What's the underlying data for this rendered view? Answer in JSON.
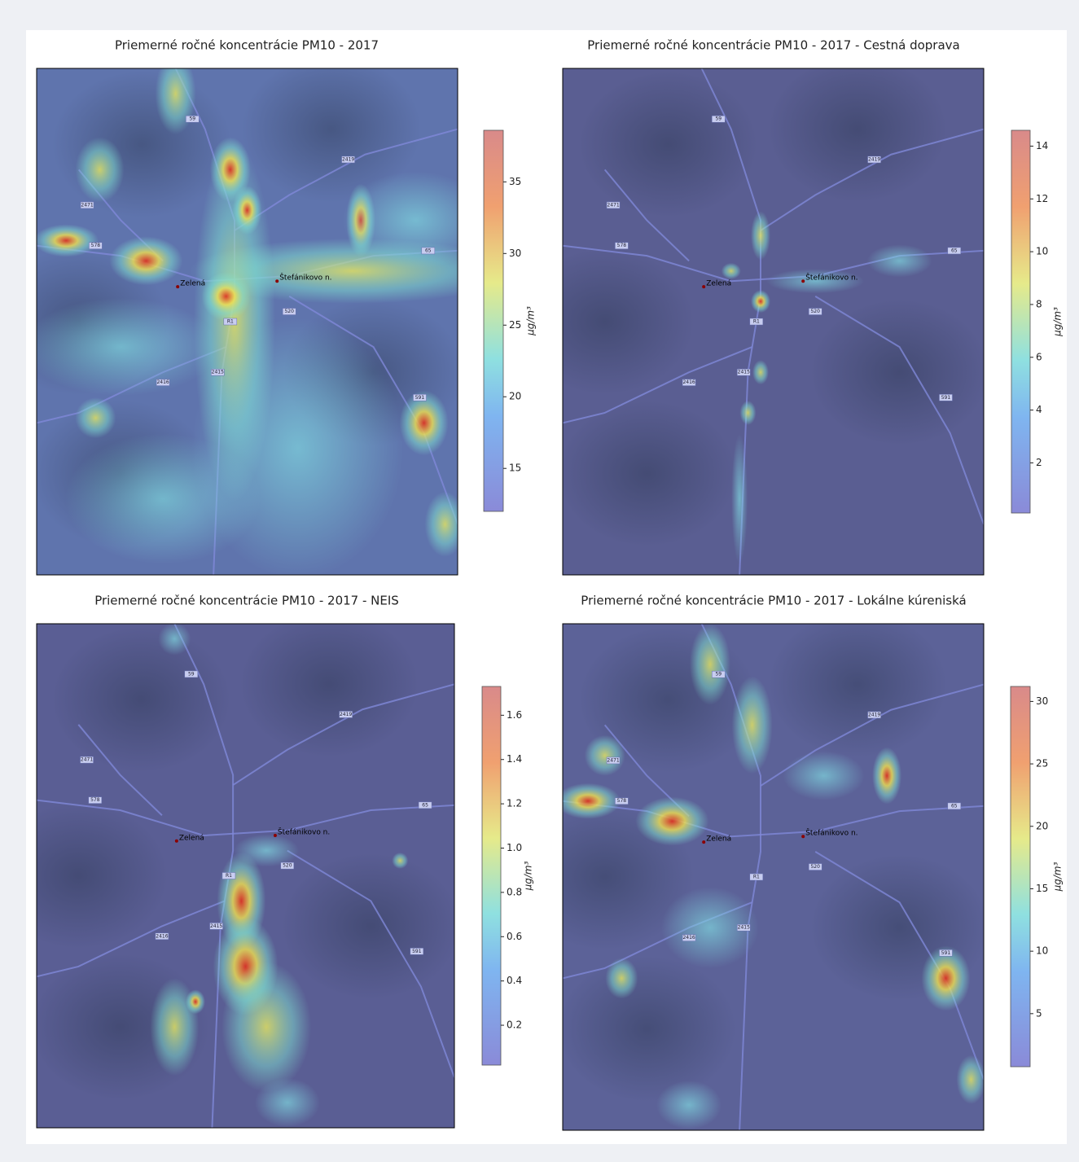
{
  "panels": [
    {
      "title": "Priemerné ročné koncentrácie PM10 - 2017",
      "colorbar_label": "μg/m³",
      "cbar_lim": [
        12,
        38.6
      ],
      "cbar_ticks": [
        15,
        20,
        25,
        30,
        35
      ]
    },
    {
      "title": "Priemerné ročné koncentrácie PM10 - 2017 - Cestná doprava",
      "colorbar_label": "μg/m³",
      "cbar_lim": [
        0.1,
        14.6
      ],
      "cbar_ticks": [
        2,
        4,
        6,
        8,
        10,
        12,
        14
      ]
    },
    {
      "title": "Priemerné ročné koncentrácie PM10 - 2017 - NEIS",
      "colorbar_label": "μg/m³",
      "cbar_lim": [
        0.02,
        1.73
      ],
      "cbar_ticks": [
        0.2,
        0.4,
        0.6,
        0.8,
        {
          "value": 1,
          "label": "1.0"
        },
        1.2,
        1.4,
        1.6
      ]
    },
    {
      "title": "Priemerné ročné koncentrácie PM10 - 2017 - Lokálne kúreniská",
      "colorbar_label": "μg/m³",
      "cbar_lim": [
        0.75,
        31.2
      ],
      "cbar_ticks": [
        5,
        10,
        15,
        20,
        25,
        30
      ]
    }
  ],
  "places": [
    "Zelená",
    "Štefánikovo n."
  ],
  "road_labels": [
    "59",
    "2419",
    "2415",
    "2416",
    "578",
    "520",
    "R1",
    "65",
    "591",
    "2471"
  ]
}
